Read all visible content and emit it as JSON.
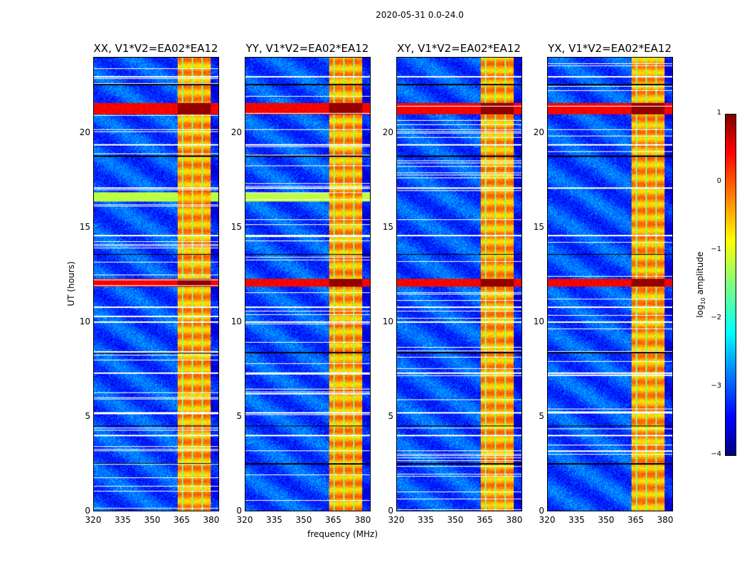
{
  "chart_data": {
    "type": "heatmap",
    "title": "2020-05-31 0.0-24.0",
    "xlabel": "frequency (MHz)",
    "ylabel": "UT (hours)",
    "xlim": [
      320,
      384
    ],
    "ylim": [
      0,
      24
    ],
    "xticks": [
      "320",
      "335",
      "350",
      "365",
      "380"
    ],
    "xtick_values": [
      320,
      335,
      350,
      365,
      380
    ],
    "yticks": [
      "0",
      "5",
      "10",
      "15",
      "20"
    ],
    "ytick_values": [
      0,
      5,
      10,
      15,
      20
    ],
    "panels": [
      {
        "title": "XX, V1*V2=EA02*EA12",
        "show_ylabel": true
      },
      {
        "title": "YY, V1*V2=EA02*EA12",
        "show_xlabel": true
      },
      {
        "title": "XY, V1*V2=EA02*EA12"
      },
      {
        "title": "YX, V1*V2=EA02*EA12"
      }
    ],
    "colorbar": {
      "label": "log10 amplitude",
      "label_main": "log",
      "label_sub": "10",
      "label_rest": " amplitude",
      "range": [
        -4,
        1
      ],
      "ticks": [
        "1",
        "0",
        "−1",
        "−2",
        "−3",
        "−4"
      ],
      "tick_values": [
        1,
        0,
        -1,
        -2,
        -3,
        -4
      ],
      "colormap": "jet"
    },
    "features": {
      "background_log_amplitude": -3.0,
      "rfi_band_mhz": [
        363,
        380
      ],
      "rfi_band_log_amplitude": -0.4,
      "channel_edges_mhz": [
        365.5,
        370.5,
        375.5
      ],
      "strong_rfi_hours": [
        [
          21.0,
          21.6
        ],
        [
          11.9,
          12.3
        ]
      ],
      "broadband_hours": [
        [
          16.4,
          16.9
        ]
      ],
      "flagged_hours": [
        2.5,
        3.2,
        4.0,
        4.5,
        5.2,
        7.3,
        8.4,
        10.0,
        10.8,
        13.6,
        14.6,
        17.1,
        18.8,
        19.4,
        20.2,
        22.6,
        23.0
      ]
    }
  }
}
